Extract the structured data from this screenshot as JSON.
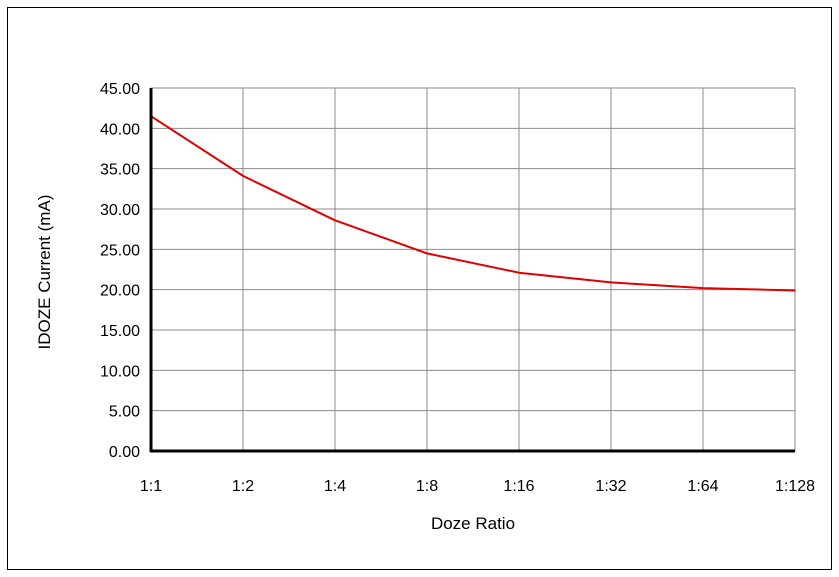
{
  "chart_data": {
    "type": "line",
    "xlabel": "Doze Ratio",
    "ylabel": "IDOZE Current (mA)",
    "categories": [
      "1:1",
      "1:2",
      "1:4",
      "1:8",
      "1:16",
      "1:32",
      "1:64",
      "1:128"
    ],
    "ylim": [
      0,
      45
    ],
    "yticks": [
      "0.00",
      "5.00",
      "10.00",
      "15.00",
      "20.00",
      "25.00",
      "30.00",
      "35.00",
      "40.00",
      "45.00"
    ],
    "grid": true,
    "legend": "none",
    "series": [
      {
        "values": [
          41.5,
          34.1,
          28.6,
          24.5,
          22.1,
          20.9,
          20.2,
          19.9
        ],
        "color": "#e00000"
      }
    ]
  }
}
